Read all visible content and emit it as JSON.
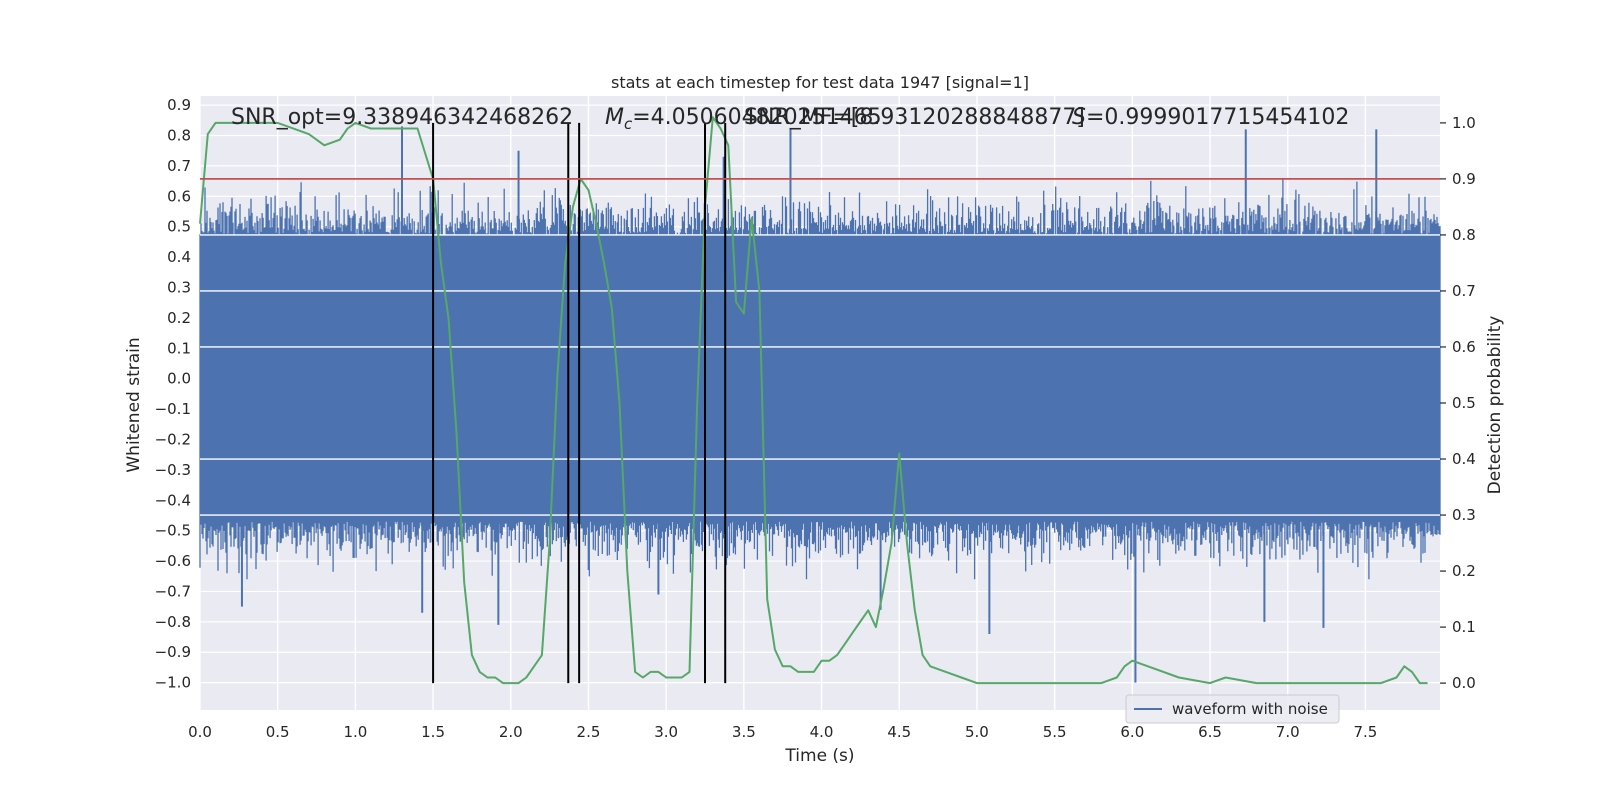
{
  "chart_data": {
    "type": "line",
    "title": "stats at each timestep for test data 1947 [signal=1]",
    "xlabel": "Time (s)",
    "ylabel": "Whitened strain",
    "y2label": "Detection probability",
    "xlim": [
      0.0,
      7.98
    ],
    "ylim": [
      -1.09,
      0.93
    ],
    "y2lim": [
      -0.048,
      1.048
    ],
    "xticks": [
      "0.0",
      "0.5",
      "1.0",
      "1.5",
      "2.0",
      "2.5",
      "3.0",
      "3.5",
      "4.0",
      "4.5",
      "5.0",
      "5.5",
      "6.0",
      "6.5",
      "7.0",
      "7.5"
    ],
    "yticks": [
      "0.9",
      "0.8",
      "0.7",
      "0.6",
      "0.5",
      "0.4",
      "0.3",
      "0.2",
      "0.1",
      "0.0",
      "−0.1",
      "−0.2",
      "−0.3",
      "−0.4",
      "−0.5",
      "−0.6",
      "−0.7",
      "−0.8",
      "−0.9",
      "−1.0"
    ],
    "y2ticks": [
      "1.0",
      "0.9",
      "0.8",
      "0.7",
      "0.6",
      "0.5",
      "0.4",
      "0.3",
      "0.2",
      "0.1",
      "0.0"
    ],
    "grid": true,
    "legend": {
      "placement": "lower-right",
      "entries": [
        "waveform with noise"
      ]
    },
    "annotations": [
      {
        "text": "SNR_opt=9.338946342468262"
      },
      {
        "text": "M",
        "sub": "c",
        "rest": "=4.050604820251465"
      },
      {
        "text": "SNR_MF=[8.93120288848877]"
      },
      {
        "text": "S",
        "rest": "=0.9999017715454102"
      }
    ],
    "threshold": {
      "value": 0.9,
      "color": "#c44e52",
      "axis": "right"
    },
    "vertical_lines": [
      1.5,
      2.37,
      2.44,
      3.25,
      3.38
    ],
    "series": [
      {
        "name": "waveform with noise",
        "color": "#4c72b0",
        "axis": "left",
        "core_band": 0.47,
        "noise_seed": 1947,
        "spikes": [
          {
            "x": 1.3,
            "y": 0.83
          },
          {
            "x": 2.05,
            "y": 0.75
          },
          {
            "x": 3.37,
            "y": 0.73
          },
          {
            "x": 3.8,
            "y": 0.82
          },
          {
            "x": 6.73,
            "y": 0.82
          },
          {
            "x": 7.57,
            "y": 0.82
          },
          {
            "x": 0.27,
            "y": -0.75
          },
          {
            "x": 1.43,
            "y": -0.77
          },
          {
            "x": 1.92,
            "y": -0.81
          },
          {
            "x": 2.95,
            "y": -0.71
          },
          {
            "x": 4.38,
            "y": -0.76
          },
          {
            "x": 5.08,
            "y": -0.84
          },
          {
            "x": 6.02,
            "y": -1.0
          },
          {
            "x": 6.85,
            "y": -0.8
          },
          {
            "x": 7.23,
            "y": -0.82
          }
        ]
      },
      {
        "name": "Detection probability",
        "color": "#55a868",
        "axis": "right",
        "x": [
          0.0,
          0.05,
          0.1,
          0.2,
          0.3,
          0.5,
          0.7,
          0.8,
          0.9,
          0.95,
          1.0,
          1.1,
          1.2,
          1.3,
          1.4,
          1.5,
          1.55,
          1.6,
          1.65,
          1.7,
          1.75,
          1.8,
          1.85,
          1.9,
          1.95,
          2.0,
          2.05,
          2.1,
          2.15,
          2.2,
          2.25,
          2.3,
          2.35,
          2.4,
          2.45,
          2.5,
          2.55,
          2.6,
          2.65,
          2.7,
          2.75,
          2.8,
          2.85,
          2.9,
          2.95,
          3.0,
          3.05,
          3.1,
          3.15,
          3.2,
          3.25,
          3.3,
          3.35,
          3.4,
          3.45,
          3.5,
          3.55,
          3.6,
          3.65,
          3.7,
          3.75,
          3.8,
          3.85,
          3.9,
          3.95,
          4.0,
          4.05,
          4.1,
          4.15,
          4.2,
          4.25,
          4.3,
          4.35,
          4.4,
          4.45,
          4.5,
          4.55,
          4.6,
          4.65,
          4.7,
          4.8,
          4.9,
          5.0,
          5.2,
          5.5,
          5.8,
          5.9,
          5.95,
          6.0,
          6.1,
          6.3,
          6.5,
          6.6,
          6.8,
          7.0,
          7.2,
          7.4,
          7.6,
          7.7,
          7.75,
          7.8,
          7.85,
          7.9
        ],
        "y": [
          0.82,
          0.98,
          1.0,
          1.0,
          1.0,
          1.0,
          0.98,
          0.96,
          0.97,
          0.99,
          1.0,
          0.99,
          0.99,
          0.99,
          0.99,
          0.9,
          0.75,
          0.65,
          0.45,
          0.18,
          0.05,
          0.02,
          0.01,
          0.01,
          0.0,
          0.0,
          0.0,
          0.01,
          0.03,
          0.05,
          0.25,
          0.55,
          0.75,
          0.85,
          0.9,
          0.88,
          0.82,
          0.75,
          0.67,
          0.5,
          0.2,
          0.02,
          0.01,
          0.02,
          0.02,
          0.01,
          0.01,
          0.01,
          0.02,
          0.5,
          0.85,
          1.01,
          0.99,
          0.96,
          0.68,
          0.66,
          0.83,
          0.7,
          0.15,
          0.06,
          0.03,
          0.03,
          0.02,
          0.02,
          0.02,
          0.04,
          0.04,
          0.05,
          0.07,
          0.09,
          0.11,
          0.13,
          0.1,
          0.17,
          0.25,
          0.41,
          0.25,
          0.13,
          0.05,
          0.03,
          0.02,
          0.01,
          0.0,
          0.0,
          0.0,
          0.0,
          0.01,
          0.03,
          0.04,
          0.03,
          0.01,
          0.0,
          0.01,
          0.0,
          0.0,
          0.0,
          0.0,
          0.0,
          0.01,
          0.03,
          0.02,
          0.0,
          0.0
        ]
      }
    ]
  }
}
